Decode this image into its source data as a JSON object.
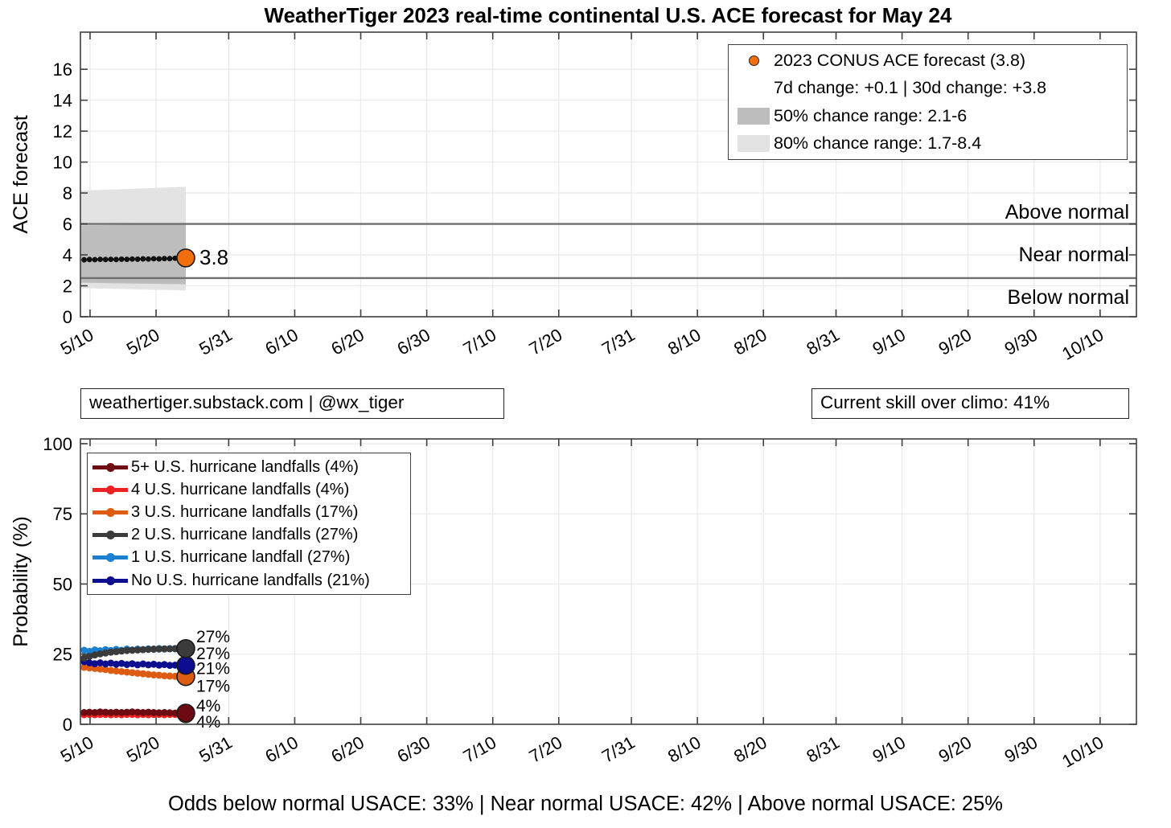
{
  "title": "WeatherTiger 2023 real-time continental U.S. ACE forecast for May 24",
  "annotations": {
    "source_box": "weathertiger.substack.com | @wx_tiger",
    "skill_box": "Current skill over climo: 41%",
    "footer": "Odds below normal USACE: 33% | Near normal USACE: 42% | Above normal USACE: 25%"
  },
  "palette": {
    "grid": "#ebebeb",
    "frame": "#3f3f3f",
    "threshold": "#6f6f6f",
    "band80": "#e3e3e3",
    "band50": "#bdbdbd",
    "black": "#111111",
    "orange": "#dd5c12",
    "orange_dot": "#f26d0c",
    "above_normal": "#d9541a",
    "near_normal": "#3f3f3f",
    "below_normal": "#0e79c4",
    "maroon": "#6e0b12",
    "maroon_label": "#3d070c",
    "red": "#ee2222",
    "gray_series": "#3b3b3b",
    "light_blue": "#1b80d2",
    "navy": "#0d0d8f"
  },
  "axis": {
    "x_tick_labels": [
      "5/10",
      "5/20",
      "5/31",
      "6/10",
      "6/20",
      "6/30",
      "7/10",
      "7/20",
      "7/31",
      "8/10",
      "8/20",
      "8/31",
      "9/10",
      "9/20",
      "9/30",
      "10/10"
    ],
    "x_tick_days": [
      0,
      10,
      21,
      31,
      41,
      51,
      61,
      71,
      82,
      92,
      102,
      113,
      123,
      133,
      143,
      153
    ],
    "x_range_days": [
      -1.46,
      158.5
    ],
    "sample_days": [
      -0.9,
      -0.09,
      0.72,
      1.53,
      2.34,
      3.15,
      3.96,
      4.77,
      5.58,
      6.39,
      7.21,
      8.02,
      8.83,
      9.64,
      10.45,
      11.26,
      12.07,
      12.88,
      13.69,
      14.5
    ]
  },
  "chart_data": [
    {
      "id": "ace",
      "type": "line",
      "title": "WeatherTiger 2023 real-time continental U.S. ACE forecast for May 24",
      "ylabel": "ACE forecast",
      "ylim": [
        0,
        18.4
      ],
      "yticks": [
        0,
        2,
        4,
        6,
        8,
        10,
        12,
        14,
        16
      ],
      "grid": true,
      "legend_rows": [
        {
          "marker": "dot",
          "color": "#f26d0c",
          "label": "2023 CONUS ACE forecast (3.8)"
        },
        {
          "marker": "none",
          "color": "",
          "label": "7d change: +0.1 | 30d change: +3.8"
        },
        {
          "marker": "swatch",
          "color": "#bdbdbd",
          "label": "50% chance range: 2.1-6"
        },
        {
          "marker": "swatch",
          "color": "#e3e3e3",
          "label": "80% chance range: 1.7-8.4"
        }
      ],
      "bands": [
        {
          "name": "80% chance range",
          "color": "#e3e3e3",
          "lo_start": 1.85,
          "lo_end": 1.7,
          "hi_start": 8.15,
          "hi_end": 8.4,
          "day_end": 14.5
        },
        {
          "name": "50% chance range",
          "color": "#bdbdbd",
          "lo_start": 2.2,
          "lo_end": 2.1,
          "hi_start": 5.9,
          "hi_end": 6.0,
          "day_end": 14.5
        }
      ],
      "thresholds": [
        {
          "name": "above-normal-line",
          "value": 6.0
        },
        {
          "name": "below-normal-line",
          "value": 2.5
        }
      ],
      "zones": [
        {
          "label": "Above normal",
          "color": "#d9541a",
          "y_value": 6.8
        },
        {
          "label": "Near normal",
          "color": "#3f3f3f",
          "y_value": 4.05
        },
        {
          "label": "Below normal",
          "color": "#0e79c4",
          "y_value": 1.3
        }
      ],
      "series": [
        {
          "name": "2023 CONUS ACE forecast",
          "color": "#111111",
          "lw": 2.2,
          "r": 3.4,
          "values": [
            3.68,
            3.7,
            3.69,
            3.71,
            3.7,
            3.71,
            3.7,
            3.72,
            3.71,
            3.73,
            3.72,
            3.74,
            3.73,
            3.75,
            3.74,
            3.76,
            3.76,
            3.78,
            3.79,
            3.8
          ],
          "end_dot": {
            "day": 14.5,
            "value": 3.8,
            "fill": "#f26d0c",
            "r": 11
          },
          "end_label": {
            "text": "3.8",
            "color": "#e0560f",
            "dy": 8,
            "dx": 17,
            "size": 26
          }
        }
      ]
    },
    {
      "id": "prob",
      "type": "line",
      "ylabel": "Probability (%)",
      "ylim": [
        0,
        101.7
      ],
      "yticks": [
        0,
        25,
        50,
        75,
        100
      ],
      "grid": true,
      "legend_rows": [
        {
          "marker": "linedot",
          "color": "#6e0b12",
          "label": "5+ U.S. hurricane landfalls (4%)"
        },
        {
          "marker": "linedot",
          "color": "#ee2222",
          "label": "4 U.S. hurricane landfalls (4%)"
        },
        {
          "marker": "linedot",
          "color": "#dd5c12",
          "label": "3 U.S. hurricane landfalls (17%)"
        },
        {
          "marker": "linedot",
          "color": "#3b3b3b",
          "label": "2 U.S. hurricane landfalls (27%)"
        },
        {
          "marker": "linedot",
          "color": "#1b80d2",
          "label": "1 U.S. hurricane landfall (27%)"
        },
        {
          "marker": "linedot",
          "color": "#0d0d8f",
          "label": "No U.S. hurricane landfalls (21%)"
        }
      ],
      "series": [
        {
          "name": "4 U.S. hurricane landfalls",
          "color": "#ee2222",
          "lw": 3.4,
          "r": 4.4,
          "values": [
            3.4,
            3.5,
            3.4,
            3.5,
            3.5,
            3.4,
            3.5,
            3.4,
            3.5,
            3.5,
            3.4,
            3.5,
            3.4,
            3.5,
            3.5,
            3.4,
            3.5,
            3.5,
            3.5,
            3.5
          ],
          "end_dot": {
            "day": 14.5,
            "value": 3.5,
            "r": 10
          },
          "end_label": {
            "text": "4%",
            "color": "#ee2222",
            "dy": 16,
            "dx": 13,
            "size": 21
          }
        },
        {
          "name": "5+ U.S. hurricane landfalls",
          "color": "#6e0b12",
          "lw": 3.4,
          "r": 4.4,
          "values": [
            4.2,
            4.3,
            4.2,
            4.4,
            4.3,
            4.2,
            4.3,
            4.2,
            4.3,
            4.4,
            4.3,
            4.2,
            4.3,
            4.2,
            4.1,
            4.2,
            4.1,
            4.0,
            4.0,
            4.0
          ],
          "end_dot": {
            "day": 14.5,
            "value": 4.0,
            "r": 11
          },
          "end_label": {
            "text": "4%",
            "color": "#3d070c",
            "dy": -2,
            "dx": 13,
            "size": 21
          }
        },
        {
          "name": "3 U.S. hurricane landfalls",
          "color": "#dd5c12",
          "lw": 3.4,
          "r": 4.4,
          "values": [
            20.3,
            20.1,
            19.9,
            19.7,
            19.5,
            19.2,
            19.0,
            18.8,
            18.6,
            18.4,
            18.2,
            18.0,
            17.8,
            17.6,
            17.5,
            17.3,
            17.2,
            17.1,
            17.0,
            17.0
          ],
          "end_dot": {
            "day": 14.5,
            "value": 17,
            "r": 11
          },
          "end_label": {
            "text": "17%",
            "color": "#dd5c12",
            "dy": 19,
            "dx": 13,
            "size": 21
          }
        },
        {
          "name": "1 U.S. hurricane landfall",
          "color": "#1b80d2",
          "lw": 3.4,
          "r": 4.4,
          "values": [
            26.4,
            26.0,
            26.5,
            26.2,
            26.6,
            26.3,
            26.7,
            26.4,
            26.8,
            26.5,
            26.8,
            26.6,
            26.9,
            26.7,
            27.0,
            26.8,
            27.0,
            26.9,
            27.0,
            27.0
          ],
          "end_label": {
            "text": "27%",
            "color": "#1b80d2",
            "dy": -8,
            "dx": 13,
            "size": 21
          }
        },
        {
          "name": "No U.S. hurricane landfalls",
          "color": "#0d0d8f",
          "lw": 3.4,
          "r": 4.4,
          "values": [
            22.3,
            21.9,
            21.6,
            21.9,
            21.5,
            21.8,
            21.4,
            21.7,
            21.3,
            21.6,
            21.2,
            21.5,
            21.2,
            21.4,
            21.1,
            21.3,
            21.0,
            21.1,
            21.0,
            21.0
          ],
          "end_dot": {
            "day": 14.5,
            "value": 21,
            "r": 11
          },
          "end_label": {
            "text": "21%",
            "color": "#0d0d8f",
            "dy": 11,
            "dx": 13,
            "size": 21
          }
        },
        {
          "name": "2 U.S. hurricane landfalls",
          "color": "#3b3b3b",
          "lw": 3.4,
          "r": 4.4,
          "values": [
            23.6,
            24.2,
            24.7,
            25.1,
            25.4,
            25.7,
            25.9,
            26.1,
            26.3,
            26.4,
            26.5,
            26.6,
            26.7,
            26.8,
            26.8,
            26.9,
            26.9,
            27.0,
            27.0,
            27.0
          ],
          "end_dot": {
            "day": 14.5,
            "value": 27,
            "r": 11
          },
          "end_label": {
            "text": "27%",
            "color": "#3b3b3b",
            "dy": 13,
            "dx": 13,
            "size": 21
          }
        }
      ]
    }
  ]
}
